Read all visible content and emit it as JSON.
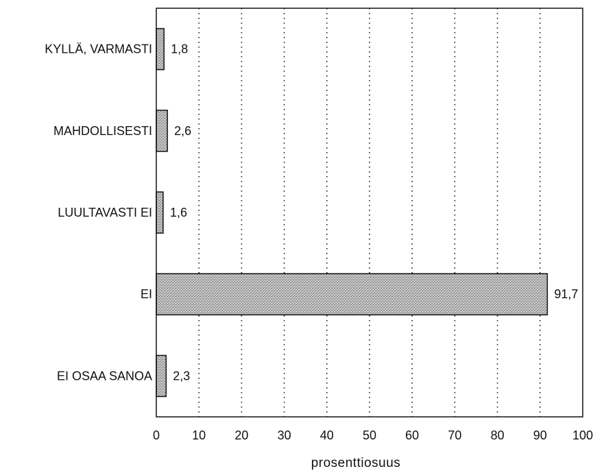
{
  "chart_data": {
    "type": "bar",
    "orientation": "horizontal",
    "categories": [
      "KYLLÄ, VARMASTI",
      "MAHDOLLISESTI",
      "LUULTAVASTI EI",
      "EI",
      "EI OSAA SANOA"
    ],
    "values": [
      1.8,
      2.6,
      1.6,
      91.7,
      2.3
    ],
    "value_labels": [
      "1,8",
      "2,6",
      "1,6",
      "91,7",
      "2,3"
    ],
    "xlabel": "prosenttiosuus",
    "xlim": [
      0,
      100
    ],
    "xticks": [
      0,
      10,
      20,
      30,
      40,
      50,
      60,
      70,
      80,
      90,
      100
    ],
    "xtick_labels": [
      "0",
      "10",
      "20",
      "30",
      "40",
      "50",
      "60",
      "70",
      "80",
      "90",
      "100"
    ],
    "grid": "vertical dotted",
    "bar_color": "#9a9a9a"
  }
}
